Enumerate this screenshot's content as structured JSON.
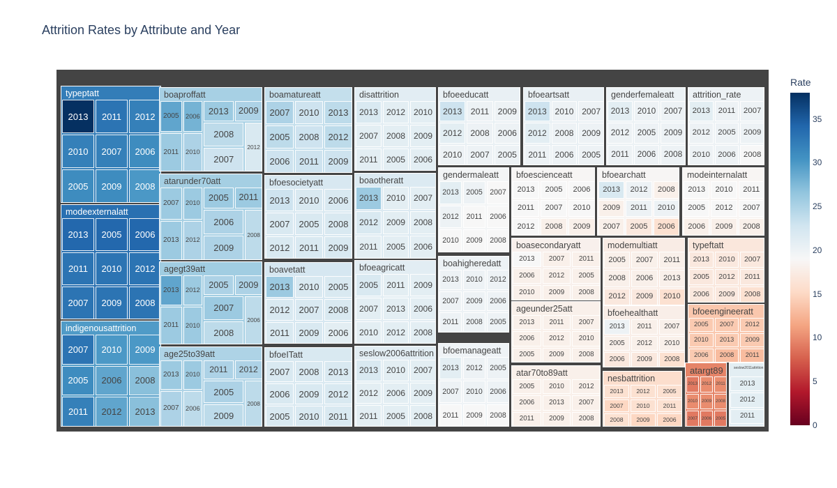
{
  "chart_data": {
    "type": "treemap",
    "title": "Attrition Rates by Attribute and Year",
    "colorbar": {
      "title": "Rate",
      "range": [
        0,
        38
      ],
      "ticks": [
        0,
        5,
        10,
        15,
        20,
        25,
        30,
        35
      ],
      "colorscale": "RdBu"
    },
    "groups": [
      {
        "name": "typeptatt",
        "years": [
          "2013",
          "2011",
          "2012",
          "2010",
          "2007",
          "2006",
          "2005",
          "2009",
          "2008"
        ],
        "rates": [
          38,
          33,
          32,
          32,
          32,
          31,
          31,
          31,
          30
        ]
      },
      {
        "name": "modeexternalatt",
        "years": [
          "2013",
          "2005",
          "2006",
          "2011",
          "2010",
          "2012",
          "2007",
          "2009",
          "2008"
        ],
        "rates": [
          34,
          34,
          34,
          33,
          33,
          33,
          33,
          33,
          33
        ]
      },
      {
        "name": "indigenousattrition",
        "years": [
          "2007",
          "2010",
          "2009",
          "2005",
          "2006",
          "2008",
          "2011",
          "2012",
          "2013"
        ],
        "rates": [
          33,
          30,
          30,
          31,
          29,
          27,
          32,
          29,
          27
        ]
      },
      {
        "name": "boaproffatt",
        "years": [
          "2005",
          "2006",
          "2013",
          "2009",
          "2008",
          "2011",
          "2010",
          "2007",
          "2012"
        ],
        "rates": [
          29,
          28,
          26,
          25,
          24,
          26,
          25,
          23,
          22
        ]
      },
      {
        "name": "atarunder70att",
        "years": [
          "2007",
          "2010",
          "2005",
          "2011",
          "2006",
          "2013",
          "2012",
          "2009",
          "2008"
        ],
        "rates": [
          26,
          26,
          26,
          26,
          25,
          26,
          25,
          25,
          24
        ]
      },
      {
        "name": "agegt39att",
        "years": [
          "2013",
          "2012",
          "2005",
          "2009",
          "2007",
          "2011",
          "2010",
          "2008",
          "2006"
        ],
        "rates": [
          29,
          26,
          25,
          25,
          26,
          26,
          26,
          24,
          24
        ]
      },
      {
        "name": "age25to39att",
        "years": [
          "2013",
          "2010",
          "2011",
          "2012",
          "2005",
          "2007",
          "2006",
          "2009",
          "2008"
        ],
        "rates": [
          26,
          26,
          25,
          25,
          25,
          25,
          24,
          24,
          24
        ]
      },
      {
        "name": "boamatureatt",
        "years": [
          "2007",
          "2010",
          "2013",
          "2005",
          "2008",
          "2012",
          "2006",
          "2011",
          "2009"
        ],
        "rates": [
          25,
          23,
          24,
          24,
          23,
          24,
          23,
          23,
          23
        ]
      },
      {
        "name": "bfoesocietyatt",
        "years": [
          "2013",
          "2010",
          "2006",
          "2007",
          "2005",
          "2008",
          "2012",
          "2011",
          "2009"
        ],
        "rates": [
          23,
          22,
          22,
          22,
          22,
          22,
          22,
          22,
          22
        ]
      },
      {
        "name": "boavetatt",
        "years": [
          "2013",
          "2010",
          "2005",
          "2012",
          "2007",
          "2008",
          "2011",
          "2009",
          "2006"
        ],
        "rates": [
          26,
          22,
          22,
          22,
          22,
          22,
          22,
          22,
          21
        ]
      },
      {
        "name": "bfoeITatt",
        "years": [
          "2007",
          "2008",
          "2013",
          "2006",
          "2009",
          "2012",
          "2005",
          "2010",
          "2011"
        ],
        "rates": [
          22,
          22,
          22,
          22,
          22,
          22,
          22,
          22,
          22
        ]
      },
      {
        "name": "disattrition",
        "years": [
          "2013",
          "2012",
          "2010",
          "2007",
          "2008",
          "2009",
          "2011",
          "2005",
          "2006"
        ],
        "rates": [
          22,
          21,
          21,
          21,
          21,
          21,
          21,
          21,
          21
        ]
      },
      {
        "name": "boaotheratt",
        "years": [
          "2013",
          "2010",
          "2007",
          "2012",
          "2009",
          "2008",
          "2011",
          "2005",
          "2006"
        ],
        "rates": [
          26,
          21,
          21,
          22,
          21,
          21,
          21,
          21,
          21
        ]
      },
      {
        "name": "bfoeagricatt",
        "years": [
          "2005",
          "2011",
          "2009",
          "2007",
          "2013",
          "2006",
          "2010",
          "2012",
          "2008"
        ],
        "rates": [
          22,
          21,
          21,
          21,
          21,
          21,
          21,
          21,
          21
        ]
      },
      {
        "name": "seslow2006attrition",
        "years": [
          "2013",
          "2010",
          "2007",
          "2012",
          "2006",
          "2009",
          "2011",
          "2005",
          "2008"
        ],
        "rates": [
          22,
          21,
          21,
          21,
          21,
          21,
          21,
          21,
          21
        ]
      },
      {
        "name": "bfoeeducatt",
        "years": [
          "2013",
          "2011",
          "2009",
          "2012",
          "2008",
          "2006",
          "2010",
          "2007",
          "2005"
        ],
        "rates": [
          23,
          20,
          20,
          21,
          20,
          20,
          20,
          20,
          20
        ]
      },
      {
        "name": "bfoeartsatt",
        "years": [
          "2013",
          "2010",
          "2007",
          "2012",
          "2008",
          "2009",
          "2011",
          "2006",
          "2005"
        ],
        "rates": [
          23,
          20,
          20,
          21,
          20,
          20,
          20,
          20,
          20
        ]
      },
      {
        "name": "genderfemaleatt",
        "years": [
          "2013",
          "2010",
          "2007",
          "2012",
          "2005",
          "2009",
          "2011",
          "2006",
          "2008"
        ],
        "rates": [
          21,
          20,
          20,
          20,
          20,
          20,
          20,
          20,
          20
        ]
      },
      {
        "name": "attrition_rate",
        "years": [
          "2013",
          "2011",
          "2007",
          "2012",
          "2005",
          "2009",
          "2010",
          "2006",
          "2008"
        ],
        "rates": [
          21,
          20,
          20,
          20,
          20,
          20,
          20,
          20,
          19
        ]
      },
      {
        "name": "gendermaleatt",
        "years": [
          "2013",
          "2005",
          "2007",
          "2012",
          "2011",
          "2006",
          "2010",
          "2009",
          "2008"
        ],
        "rates": [
          21,
          20,
          19,
          20,
          19,
          19,
          19,
          19,
          19
        ]
      },
      {
        "name": "boahigheredatt",
        "years": [
          "2013",
          "2010",
          "2012",
          "2007",
          "2009",
          "2006",
          "2011",
          "2008",
          "2005"
        ],
        "rates": [
          20,
          20,
          20,
          20,
          20,
          20,
          20,
          20,
          20
        ]
      },
      {
        "name": "bfoemanageatt",
        "years": [
          "2013",
          "2012",
          "2005",
          "2007",
          "2010",
          "2006",
          "2011",
          "2009",
          "2008"
        ],
        "rates": [
          21,
          20,
          20,
          20,
          20,
          20,
          19,
          19,
          19
        ]
      },
      {
        "name": "bfoescienceatt",
        "years": [
          "2013",
          "2005",
          "2006",
          "2011",
          "2007",
          "2010",
          "2012",
          "2008",
          "2009"
        ],
        "rates": [
          19,
          19,
          19,
          19,
          19,
          19,
          19,
          18,
          18
        ]
      },
      {
        "name": "bfoearchatt",
        "years": [
          "2013",
          "2012",
          "2008",
          "2009",
          "2011",
          "2010",
          "2007",
          "2005",
          "2006"
        ],
        "rates": [
          22,
          20,
          18,
          18,
          20,
          20,
          18,
          17,
          16
        ]
      },
      {
        "name": "modeinternalatt",
        "years": [
          "2013",
          "2010",
          "2011",
          "2005",
          "2012",
          "2007",
          "2006",
          "2009",
          "2008"
        ],
        "rates": [
          19,
          19,
          19,
          19,
          19,
          19,
          18,
          18,
          18
        ]
      },
      {
        "name": "boasecondaryatt",
        "years": [
          "2013",
          "2007",
          "2011",
          "2006",
          "2012",
          "2005",
          "2010",
          "2009",
          "2008"
        ],
        "rates": [
          19,
          18,
          18,
          18,
          18,
          18,
          18,
          18,
          18
        ]
      },
      {
        "name": "modemultiatt",
        "years": [
          "2005",
          "2007",
          "2011",
          "2008",
          "2006",
          "2013",
          "2012",
          "2009",
          "2010"
        ],
        "rates": [
          18,
          18,
          18,
          18,
          18,
          18,
          17,
          17,
          16
        ]
      },
      {
        "name": "typeftatt",
        "years": [
          "2013",
          "2010",
          "2007",
          "2005",
          "2012",
          "2011",
          "2006",
          "2009",
          "2008"
        ],
        "rates": [
          17,
          17,
          17,
          17,
          17,
          17,
          17,
          17,
          16
        ]
      },
      {
        "name": "ageunder25att",
        "years": [
          "2013",
          "2011",
          "2007",
          "2006",
          "2012",
          "2010",
          "2005",
          "2009",
          "2008"
        ],
        "rates": [
          18,
          18,
          18,
          18,
          18,
          18,
          18,
          18,
          18
        ]
      },
      {
        "name": "bfoehealthatt",
        "years": [
          "2013",
          "2011",
          "2007",
          "2005",
          "2012",
          "2010",
          "2006",
          "2009",
          "2008"
        ],
        "rates": [
          20,
          18,
          18,
          18,
          18,
          18,
          17,
          17,
          16
        ]
      },
      {
        "name": "bfoeengineeratt",
        "years": [
          "2005",
          "2007",
          "2012",
          "2010",
          "2013",
          "2009",
          "2006",
          "2008",
          "2011"
        ],
        "rates": [
          14,
          14,
          14,
          14,
          14,
          14,
          14,
          13,
          13
        ]
      },
      {
        "name": "atar70to89att",
        "years": [
          "2005",
          "2010",
          "2012",
          "2006",
          "2013",
          "2007",
          "2011",
          "2009",
          "2008"
        ],
        "rates": [
          18,
          18,
          18,
          18,
          18,
          18,
          18,
          18,
          18
        ]
      },
      {
        "name": "nesbattrition",
        "years": [
          "2013",
          "2012",
          "2005",
          "2007",
          "2010",
          "2011",
          "2008",
          "2009",
          "2006"
        ],
        "rates": [
          16,
          16,
          16,
          15,
          16,
          16,
          16,
          15,
          15
        ]
      },
      {
        "name": "atargt89",
        "years": [
          "2013",
          "2012",
          "2011",
          "2010",
          "2009",
          "2008",
          "2007",
          "2006",
          "2005"
        ],
        "rates": [
          9,
          10,
          10,
          10,
          10,
          10,
          9,
          9,
          9
        ]
      },
      {
        "name": "seslow2011attrition",
        "years": [
          "2013",
          "2012",
          "2011"
        ],
        "rates": [
          21,
          21,
          21
        ]
      }
    ]
  }
}
